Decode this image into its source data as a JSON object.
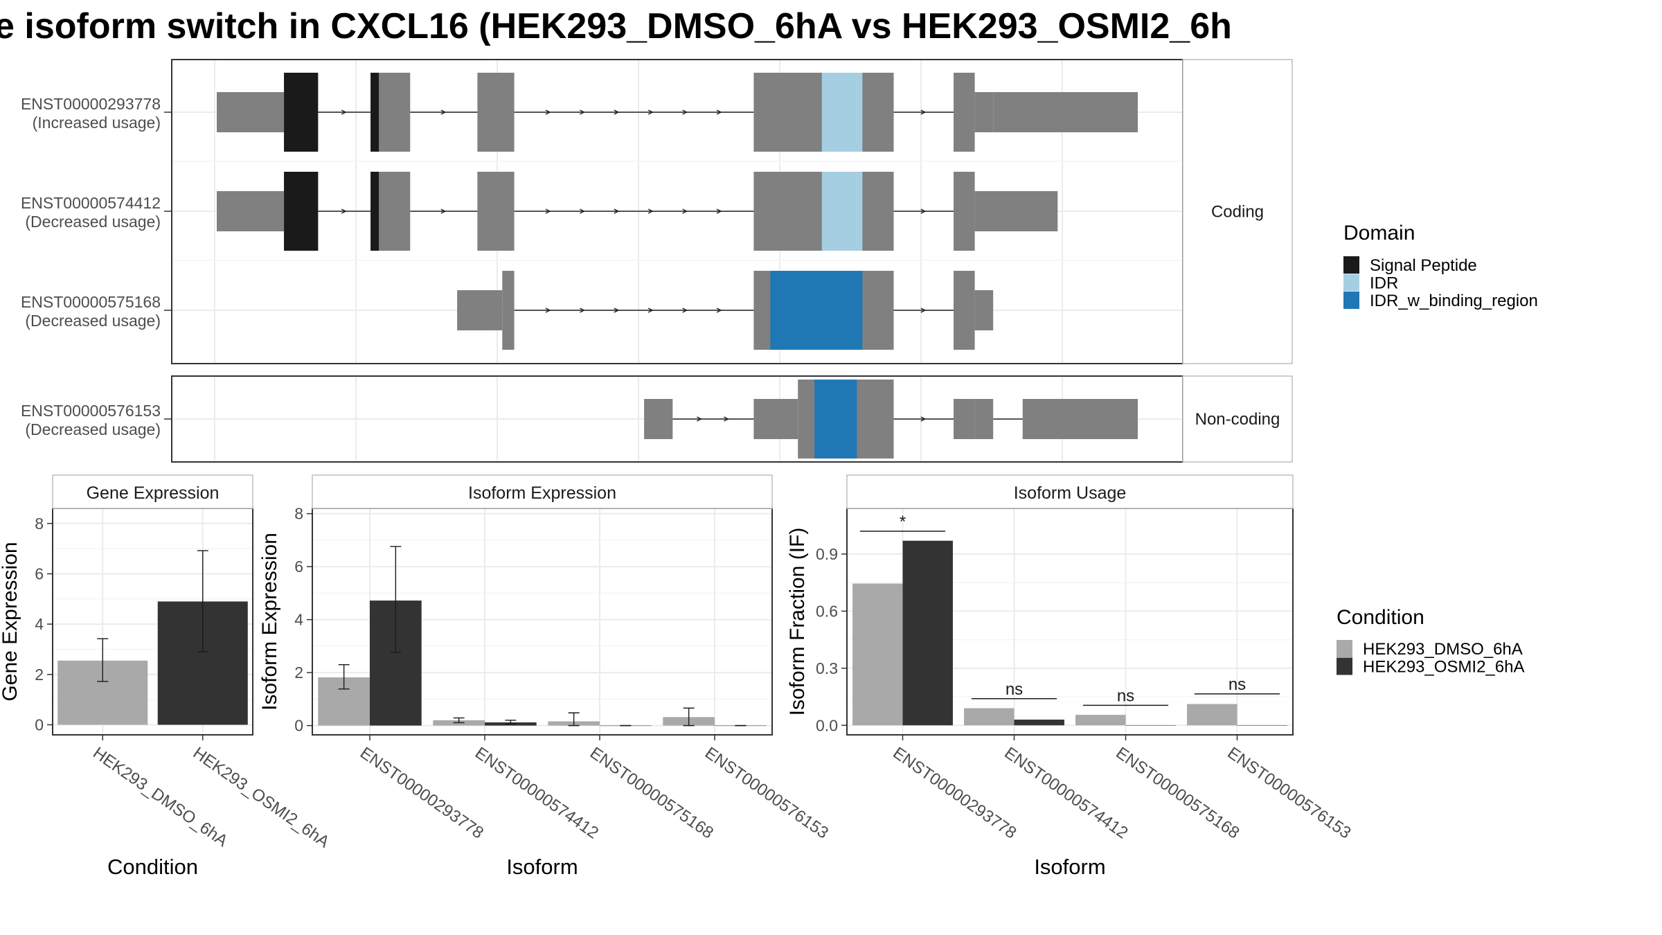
{
  "title": "e isoform switch in CXCL16 (HEK293_DMSO_6hA vs HEK293_OSMI2_6h",
  "colors": {
    "exon": "#808080",
    "signal_peptide": "#1a1a1a",
    "idr": "#a6cee3",
    "idr_binding": "#1f78b4",
    "dmso": "#a9a9a9",
    "osmi2": "#333333",
    "grid": "#ebebeb",
    "strip_bg": "#ffffff"
  },
  "structure": {
    "groups": [
      {
        "label": "Coding",
        "transcripts": [
          0,
          1,
          2
        ]
      },
      {
        "label": "Non-coding",
        "transcripts": [
          3
        ]
      }
    ],
    "transcripts": [
      {
        "id": "ENST00000293778",
        "usage": "(Increased usage)",
        "utr": [
          [
            0.0,
            0.073
          ],
          [
            0.843,
            1.0
          ]
        ],
        "cds": [
          [
            0.073,
            0.11
          ],
          [
            0.167,
            0.21
          ],
          [
            0.283,
            0.323
          ],
          [
            0.583,
            0.735
          ],
          [
            0.8,
            0.823
          ],
          [
            0.823,
            0.843
          ]
        ],
        "narrow": [
          [
            0.823,
            0.843
          ]
        ],
        "domains": [
          {
            "type": "signal_peptide",
            "range": [
              0.073,
              0.11
            ]
          },
          {
            "type": "signal_peptide",
            "range": [
              0.167,
              0.176
            ]
          },
          {
            "type": "idr",
            "range": [
              0.657,
              0.701
            ]
          }
        ]
      },
      {
        "id": "ENST00000574412",
        "usage": "(Decreased usage)",
        "utr": [
          [
            0.0,
            0.073
          ],
          [
            0.823,
            0.913
          ]
        ],
        "cds": [
          [
            0.073,
            0.11
          ],
          [
            0.167,
            0.21
          ],
          [
            0.283,
            0.323
          ],
          [
            0.583,
            0.735
          ],
          [
            0.8,
            0.823
          ]
        ],
        "narrow": [],
        "domains": [
          {
            "type": "signal_peptide",
            "range": [
              0.073,
              0.11
            ]
          },
          {
            "type": "signal_peptide",
            "range": [
              0.167,
              0.176
            ]
          },
          {
            "type": "idr",
            "range": [
              0.657,
              0.701
            ]
          }
        ]
      },
      {
        "id": "ENST00000575168",
        "usage": "(Decreased usage)",
        "utr": [
          [
            0.261,
            0.31
          ]
        ],
        "cds": [
          [
            0.31,
            0.323
          ],
          [
            0.583,
            0.735
          ],
          [
            0.8,
            0.823
          ],
          [
            0.823,
            0.843
          ]
        ],
        "narrow": [
          [
            0.823,
            0.843
          ]
        ],
        "domains": [
          {
            "type": "idr_binding",
            "range": [
              0.601,
              0.701
            ]
          }
        ]
      },
      {
        "id": "ENST00000576153",
        "usage": "(Decreased usage)",
        "utr": [
          [
            0.464,
            0.495
          ],
          [
            0.583,
            0.631
          ],
          [
            0.8,
            0.823
          ],
          [
            0.823,
            0.843
          ],
          [
            0.875,
            1.0
          ]
        ],
        "cds": [
          [
            0.631,
            0.735
          ]
        ],
        "narrow": [
          [
            0.823,
            0.843
          ]
        ],
        "domains": [
          {
            "type": "idr_binding",
            "range": [
              0.649,
              0.695
            ]
          }
        ]
      }
    ]
  },
  "legend_domain": {
    "title": "Domain",
    "items": [
      {
        "label": "Signal Peptide",
        "color": "#1a1a1a"
      },
      {
        "label": "IDR",
        "color": "#a6cee3"
      },
      {
        "label": "IDR_w_binding_region",
        "color": "#1f78b4"
      }
    ]
  },
  "legend_condition": {
    "title": "Condition",
    "items": [
      {
        "label": "HEK293_DMSO_6hA",
        "color": "#a9a9a9"
      },
      {
        "label": "HEK293_OSMI2_6hA",
        "color": "#333333"
      }
    ]
  },
  "chart_data": [
    {
      "type": "bar",
      "title": "Gene Expression",
      "xlabel": "Condition",
      "ylabel": "Gene Expression",
      "categories": [
        "HEK293_DMSO_6hA",
        "HEK293_OSMI2_6hA"
      ],
      "values": [
        2.55,
        4.9
      ],
      "error_low": [
        1.72,
        2.9
      ],
      "error_high": [
        3.42,
        6.92
      ],
      "ylim": [
        -0.4,
        8.6
      ],
      "yticks": [
        0,
        2,
        4,
        6,
        8
      ],
      "yticklabels": [
        "0",
        "2",
        "4",
        "6",
        "8"
      ],
      "grid": true
    },
    {
      "type": "bar",
      "title": "Isoform Expression",
      "xlabel": "Isoform",
      "ylabel": "Isoform Expression",
      "categories": [
        "ENST00000293778",
        "ENST00000574412",
        "ENST00000575168",
        "ENST00000576153"
      ],
      "series": [
        {
          "name": "HEK293_DMSO_6hA",
          "values": [
            1.82,
            0.2,
            0.16,
            0.32
          ],
          "error_low": [
            1.38,
            0.11,
            0.0,
            0.0
          ],
          "error_high": [
            2.3,
            0.29,
            0.48,
            0.66
          ]
        },
        {
          "name": "HEK293_OSMI2_6hA",
          "values": [
            4.72,
            0.12,
            0.0,
            0.0
          ],
          "error_low": [
            2.76,
            0.06,
            0.0,
            0.0
          ],
          "error_high": [
            6.76,
            0.2,
            0.0,
            0.0
          ]
        }
      ],
      "ylim": [
        -0.35,
        8.2
      ],
      "yticks": [
        0,
        2,
        4,
        6,
        8
      ],
      "yticklabels": [
        "0",
        "2",
        "4",
        "6",
        "8"
      ],
      "grid": true
    },
    {
      "type": "bar",
      "title": "Isoform Usage",
      "xlabel": "Isoform",
      "ylabel": "Isoform Fraction (IF)",
      "categories": [
        "ENST00000293778",
        "ENST00000574412",
        "ENST00000575168",
        "ENST00000576153"
      ],
      "series": [
        {
          "name": "HEK293_DMSO_6hA",
          "values": [
            0.745,
            0.09,
            0.055,
            0.112
          ]
        },
        {
          "name": "HEK293_OSMI2_6hA",
          "values": [
            0.97,
            0.03,
            0.0,
            0.0
          ]
        }
      ],
      "significance": [
        "*",
        "ns",
        "ns",
        "ns"
      ],
      "sig_line": [
        1.02,
        0.14,
        0.105,
        0.165
      ],
      "ylim": [
        -0.05,
        1.14
      ],
      "yticks": [
        0.0,
        0.3,
        0.6,
        0.9
      ],
      "yticklabels": [
        "0.0",
        "0.3",
        "0.6",
        "0.9"
      ],
      "grid": true
    }
  ]
}
